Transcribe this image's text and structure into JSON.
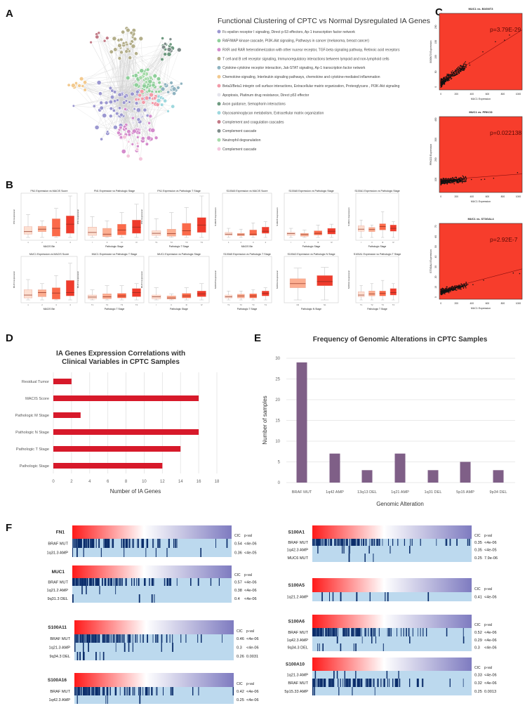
{
  "panel_labels": {
    "A": "A",
    "B": "B",
    "C": "C",
    "D": "D",
    "E": "E",
    "F": "F"
  },
  "network": {
    "title": "Functional Clustering of CPTC vs Normal Dysregulated IA Genes",
    "legend": [
      {
        "label": "Fc-epsilon receptor I signaling, Direct p-53 effectors, Ap-1 transcription factor network",
        "color": "#9b97d0"
      },
      {
        "label": "RAF/MAP kinase cascade, PI3K-Akt signaling, Pathways in cancer (melanoma, breast cancer)",
        "color": "#8fcf9a"
      },
      {
        "label": "RXR and RAR heterodimerization with other nucear receptor, TGF-beta signaling pathway, Retinoic acid receptors",
        "color": "#d48ccc"
      },
      {
        "label": "T cell and B cell receptor signaling, Immunoregulatory interactions between lympoid and non-lymphoid cells",
        "color": "#b3ae8a"
      },
      {
        "label": "Cytokine-cytokine receptor interaction, Jak-STAT signaling, Ap-1 transcription factor network",
        "color": "#8fb3c0"
      },
      {
        "label": "Chemokine-signaling, Interleukin signaling pathways, chemokine and cytokine-mediated inflammation",
        "color": "#f2c98e"
      },
      {
        "label": "Beta3/Beta1 integrin cell surface interactions, Extracellular matrix organization, Proteoglycans , PI3K-Akt signaling",
        "color": "#f29aa8"
      },
      {
        "label": "Apoptosis, Platinum drug resistance, Direct p53 effector",
        "color": "#e4e4ec"
      },
      {
        "label": "Axon guidance, Semaphorin interactions",
        "color": "#6e9a80"
      },
      {
        "label": "Glycosaminoglycan metabolism, Extracellular matrix organization",
        "color": "#9ed8de"
      },
      {
        "label": "Complement and coagulation cascades",
        "color": "#c27a86"
      },
      {
        "label": "Complement cascade",
        "color": "#7f8c8a"
      },
      {
        "label": "Neutrophil degranulation",
        "color": "#a6dba9"
      },
      {
        "label": "Complement cascade",
        "color": "#f3c6dc"
      }
    ]
  },
  "chart_data": [
    {
      "id": "D",
      "type": "bar",
      "orientation": "horizontal",
      "title": "IA Genes Expression Correlations with Clinical Variables in CPTC Samples",
      "title_lines": [
        "IA Genes Expression Correlations with",
        "Clinical Variables in CPTC Samples"
      ],
      "categories": [
        "Residual Tumor",
        "MACIS Score",
        "Pathologic M Stage",
        "Pathologic N Stage",
        "Pathologic T Stage",
        "Pathologic Stage"
      ],
      "values": [
        2,
        16,
        3,
        16,
        14,
        12
      ],
      "xlabel": "Number of IA Genes",
      "xlim": [
        0,
        18
      ],
      "xticks": [
        "0",
        "2",
        "4",
        "6",
        "8",
        "10",
        "12",
        "14",
        "16",
        "18"
      ],
      "grid": true,
      "color": "#d7192a"
    },
    {
      "id": "E",
      "type": "bar",
      "title": "Frequency of Genomic Alterations in CPTC Samples",
      "categories": [
        "BRAF MUT",
        "1q42 AMP",
        "13q13 DEL",
        "1q21 AMP",
        "1q31 DEL",
        "5p15 AMP",
        "9p34 DEL"
      ],
      "values": [
        29,
        7,
        3,
        7,
        3,
        5,
        3
      ],
      "xlabel": "Genomic Alteration",
      "ylabel": "Number of samples",
      "ylim": [
        0,
        30
      ],
      "yticks": [
        "0",
        "5",
        "10",
        "15",
        "20",
        "25",
        "30"
      ],
      "grid": true,
      "color": "#7f5f87"
    },
    {
      "id": "C",
      "type": "scatter",
      "background": "#f73d2c",
      "plots": [
        {
          "title": "MUC1 vs. B3GNT3",
          "xlabel": "MUC1 Expression",
          "ylabel": "B3GNT3 Expression",
          "annotation": "p=3.79E-29",
          "xlim": [
            -20,
            1050
          ],
          "ylim": [
            -10,
            245
          ],
          "xticks": [
            "0",
            "200",
            "400",
            "600",
            "800",
            "1000"
          ],
          "yticks": [
            "0",
            "50",
            "100",
            "150",
            "200"
          ],
          "trend": [
            [
              0,
              19
            ],
            [
              1050,
              190
            ]
          ]
        },
        {
          "title": "MUC1 vs. PRKCD",
          "xlabel": "MUC1 Expression",
          "ylabel": "PRKCD Expression",
          "annotation": "p=0.022138",
          "xlim": [
            -20,
            1050
          ],
          "ylim": [
            35,
            415
          ],
          "xticks": [
            "0",
            "200",
            "400",
            "600",
            "800",
            "1000"
          ],
          "yticks": [
            "100",
            "200",
            "300",
            "400"
          ],
          "trend": [
            [
              0,
              98
            ],
            [
              1050,
              128
            ]
          ]
        },
        {
          "title": "MUC1 vs. ST3GAL4",
          "xlabel": "MUC1 Expression",
          "ylabel": "ST3GAL4 Expression",
          "annotation": "p=2.92E-7",
          "xlim": [
            -20,
            1050
          ],
          "ylim": [
            -2,
            73
          ],
          "xticks": [
            "0",
            "200",
            "400",
            "600",
            "800",
            "1000"
          ],
          "yticks": [
            "0",
            "10",
            "20",
            "30",
            "40",
            "50",
            "60",
            "70"
          ],
          "trend": [
            [
              0,
              7
            ],
            [
              1050,
              28
            ]
          ]
        }
      ]
    },
    {
      "id": "B",
      "type": "box",
      "ylim": [
        0,
        100
      ],
      "colors": [
        "#fde0d2",
        "#fcae91",
        "#fb6a4a",
        "#ef3b2c"
      ],
      "plots": [
        {
          "title": "FN1 Expression vs MACIS Score",
          "xlabel": "MACIS Bin",
          "ylabel": "FN1 Expression",
          "xticks": [
            "1",
            "2",
            "3",
            "4"
          ],
          "boxes": [
            [
              0,
              8,
              14,
              26,
              55
            ],
            [
              0,
              14,
              20,
              27,
              40
            ],
            [
              0,
              3,
              22,
              45,
              70
            ],
            [
              0,
              10,
              32,
              52,
              100
            ]
          ]
        },
        {
          "title": "FN1 Expression vs Pathologic Stage",
          "xlabel": "Pathologic Stage",
          "ylabel": "FN1 Expression",
          "xticks": [
            "I",
            "II",
            "III",
            "IV"
          ],
          "boxes": [
            [
              0,
              5,
              12,
              25,
              50
            ],
            [
              0,
              2,
              8,
              22,
              40
            ],
            [
              0,
              6,
              18,
              32,
              60
            ],
            [
              0,
              10,
              25,
              42,
              80
            ]
          ]
        },
        {
          "title": "FN1 Expression vs Pathologic T Stage",
          "xlabel": "Pathologic T Stage",
          "ylabel": "FN1 Expression",
          "xticks": [
            "T1",
            "T2",
            "T3",
            "T4"
          ],
          "boxes": [
            [
              0,
              5,
              10,
              16,
              45
            ],
            [
              0,
              3,
              9,
              20,
              60
            ],
            [
              0,
              5,
              16,
              34,
              72
            ],
            [
              0,
              12,
              30,
              48,
              100
            ]
          ]
        },
        {
          "title": "S100A5 Expression vs MACIS Score",
          "xlabel": "MACIS Bin",
          "ylabel": "S100A5 Expression",
          "xticks": [
            "1",
            "2",
            "3",
            "4"
          ],
          "boxes": [
            [
              0,
              5,
              8,
              12,
              22
            ],
            [
              0,
              4,
              7,
              10,
              20
            ],
            [
              0,
              5,
              8,
              18,
              35
            ],
            [
              0,
              10,
              15,
              25,
              38
            ]
          ]
        },
        {
          "title": "S100A5 Expression vs Pathologic Stage",
          "xlabel": "Pathologic Stage",
          "ylabel": "S100A5 Expression",
          "xticks": [
            "I",
            "II",
            "III",
            "IV"
          ],
          "boxes": [
            [
              0,
              5,
              9,
              12,
              22
            ],
            [
              0,
              3,
              7,
              10,
              18
            ],
            [
              0,
              6,
              10,
              16,
              30
            ],
            [
              0,
              8,
              15,
              22,
              32
            ]
          ]
        },
        {
          "title": "S100A1 Expression vs Pathologic Stage",
          "xlabel": "Pathologic Stage",
          "ylabel": "S100A1 Expression",
          "xticks": [
            "I",
            "II",
            "III",
            "IV"
          ],
          "boxes": [
            [
              0,
              15,
              20,
              28,
              42
            ],
            [
              0,
              14,
              19,
              24,
              30
            ],
            [
              0,
              18,
              26,
              33,
              62
            ],
            [
              0,
              15,
              22,
              30,
              38
            ]
          ]
        },
        {
          "title": "MUC1 Expression vs MACIS Score",
          "xlabel": "MACIS Bin",
          "ylabel": "MUC1 Expression",
          "xticks": [
            "1",
            "2",
            "3",
            "4"
          ],
          "boxes": [
            [
              0,
              5,
              12,
              25,
              50
            ],
            [
              0,
              8,
              18,
              25,
              40
            ],
            [
              0,
              2,
              17,
              30,
              60
            ],
            [
              0,
              10,
              18,
              48,
              90
            ]
          ]
        },
        {
          "title": "MUC1 Expression vs Pathologic T Stage",
          "xlabel": "Pathologic T Stage",
          "ylabel": "MUC1 Expression",
          "xticks": [
            "T1",
            "T2",
            "T3",
            "T4"
          ],
          "boxes": [
            [
              0,
              3,
              7,
              12,
              25
            ],
            [
              0,
              3,
              8,
              15,
              35
            ],
            [
              0,
              5,
              10,
              16,
              35
            ],
            [
              0,
              8,
              18,
              28,
              40
            ]
          ]
        },
        {
          "title": "MUC1 Expression vs Pathologic Stage",
          "xlabel": "Pathologic Stage",
          "ylabel": "MUC1 Expression",
          "xticks": [
            "I",
            "II",
            "III",
            "IV"
          ],
          "boxes": [
            [
              0,
              3,
              8,
              12,
              30
            ],
            [
              0,
              2,
              5,
              10,
              15
            ],
            [
              0,
              5,
              10,
              16,
              30
            ],
            [
              0,
              8,
              15,
              22,
              40
            ]
          ]
        },
        {
          "title": "S100A5 Expression vs Pathologic T Stage",
          "xlabel": "Pathologic T Stage",
          "ylabel": "S100A5 Expression",
          "xticks": [
            "T1",
            "T2",
            "T3",
            "T4"
          ],
          "boxes": [
            [
              0,
              5,
              8,
              12,
              22
            ],
            [
              0,
              5,
              10,
              14,
              22
            ],
            [
              0,
              5,
              10,
              15,
              25
            ],
            [
              0,
              10,
              16,
              22,
              30
            ]
          ]
        },
        {
          "title": "S100A3 Expression vs Pathologic N Stage",
          "xlabel": "Pathologic N Stage",
          "ylabel": "S100A3 Expression",
          "xticks": [
            "N0",
            "N1"
          ],
          "boxes": [
            [
              0,
              30,
              40,
              52,
              78
            ],
            [
              0,
              35,
              45,
              60,
              80
            ]
          ]
        },
        {
          "title": "S100A1 Expression vs Pathologic T Stage",
          "xlabel": "Pathologic T Stage",
          "ylabel": "S100A1 Expression",
          "xticks": [
            "T1",
            "T2",
            "T3",
            "T4"
          ],
          "boxes": [
            [
              0,
              8,
              12,
              20,
              35
            ],
            [
              0,
              10,
              15,
              22,
              40
            ],
            [
              0,
              10,
              16,
              22,
              48
            ],
            [
              0,
              12,
              18,
              28,
              40
            ]
          ]
        }
      ]
    }
  ],
  "heatmaps": {
    "header": {
      "cic": "CIC",
      "pval": "p-val"
    },
    "colors": {
      "high": "#ff1a1a",
      "mid": "#ffffff",
      "low": "#7e7bc0",
      "event": "#0b2d6b",
      "background": "#bcd9ee"
    },
    "blocks": [
      {
        "gene": "FN1",
        "rows": [
          {
            "label": "BRAF MUT",
            "cic": "0.54",
            "pval": "<4e-06"
          },
          {
            "label": "1q31.3 AMP",
            "cic": "0.36",
            "pval": "<4e-05"
          }
        ]
      },
      {
        "gene": "MUC1",
        "rows": [
          {
            "label": "BRAF MUT",
            "cic": "0.57",
            "pval": "<4e-06"
          },
          {
            "label": "1q21.2 AMP",
            "cic": "0.38",
            "pval": "<4e-06"
          },
          {
            "label": "9q31.3 DEL",
            "cic": "0.4",
            "pval": "<4e-06"
          }
        ]
      },
      {
        "gene": "S100A11",
        "rows": [
          {
            "label": "BRAF MUT",
            "cic": "0.46",
            "pval": "<4e-06"
          },
          {
            "label": "1q21.3 AMP",
            "cic": "0.3",
            "pval": "<4e-06"
          },
          {
            "label": "9q34.3 DEL",
            "cic": "0.26",
            "pval": "0.0031"
          }
        ]
      },
      {
        "gene": "S100A16",
        "rows": [
          {
            "label": "BRAF MUT",
            "cic": "0.42",
            "pval": "<4e-06"
          },
          {
            "label": "1q42.3 AMP",
            "cic": "0.25",
            "pval": "<4e-06"
          }
        ]
      },
      {
        "gene": "S100A1",
        "rows": [
          {
            "label": "BRAF MUT",
            "cic": "0.35",
            "pval": "<4e-06"
          },
          {
            "label": "1q42.3 AMP",
            "cic": "0.35",
            "pval": "<4e-05"
          },
          {
            "label": "MUC6 MUT",
            "cic": "0.25",
            "pval": "7.9e-06"
          }
        ]
      },
      {
        "gene": "S100A5",
        "rows": [
          {
            "label": "1q21.2 AMP",
            "cic": "0.41",
            "pval": "<4e-06"
          }
        ]
      },
      {
        "gene": "S100A6",
        "rows": [
          {
            "label": "BRAF MUT",
            "cic": "0.52",
            "pval": "<4e-06"
          },
          {
            "label": "1q42.3 AMP",
            "cic": "0.29",
            "pval": "<4e-06"
          },
          {
            "label": "9q34.3 DEL",
            "cic": "0.3",
            "pval": "<4e-06"
          }
        ]
      },
      {
        "gene": "S100A10",
        "rows": [
          {
            "label": "1q21.3 AMP",
            "cic": "0.33",
            "pval": "<4e-06"
          },
          {
            "label": "BRAF MUT",
            "cic": "0.32",
            "pval": "<4e-06"
          },
          {
            "label": "5p15.33 AMP",
            "cic": "0.25",
            "pval": "0.0013"
          }
        ]
      }
    ]
  }
}
